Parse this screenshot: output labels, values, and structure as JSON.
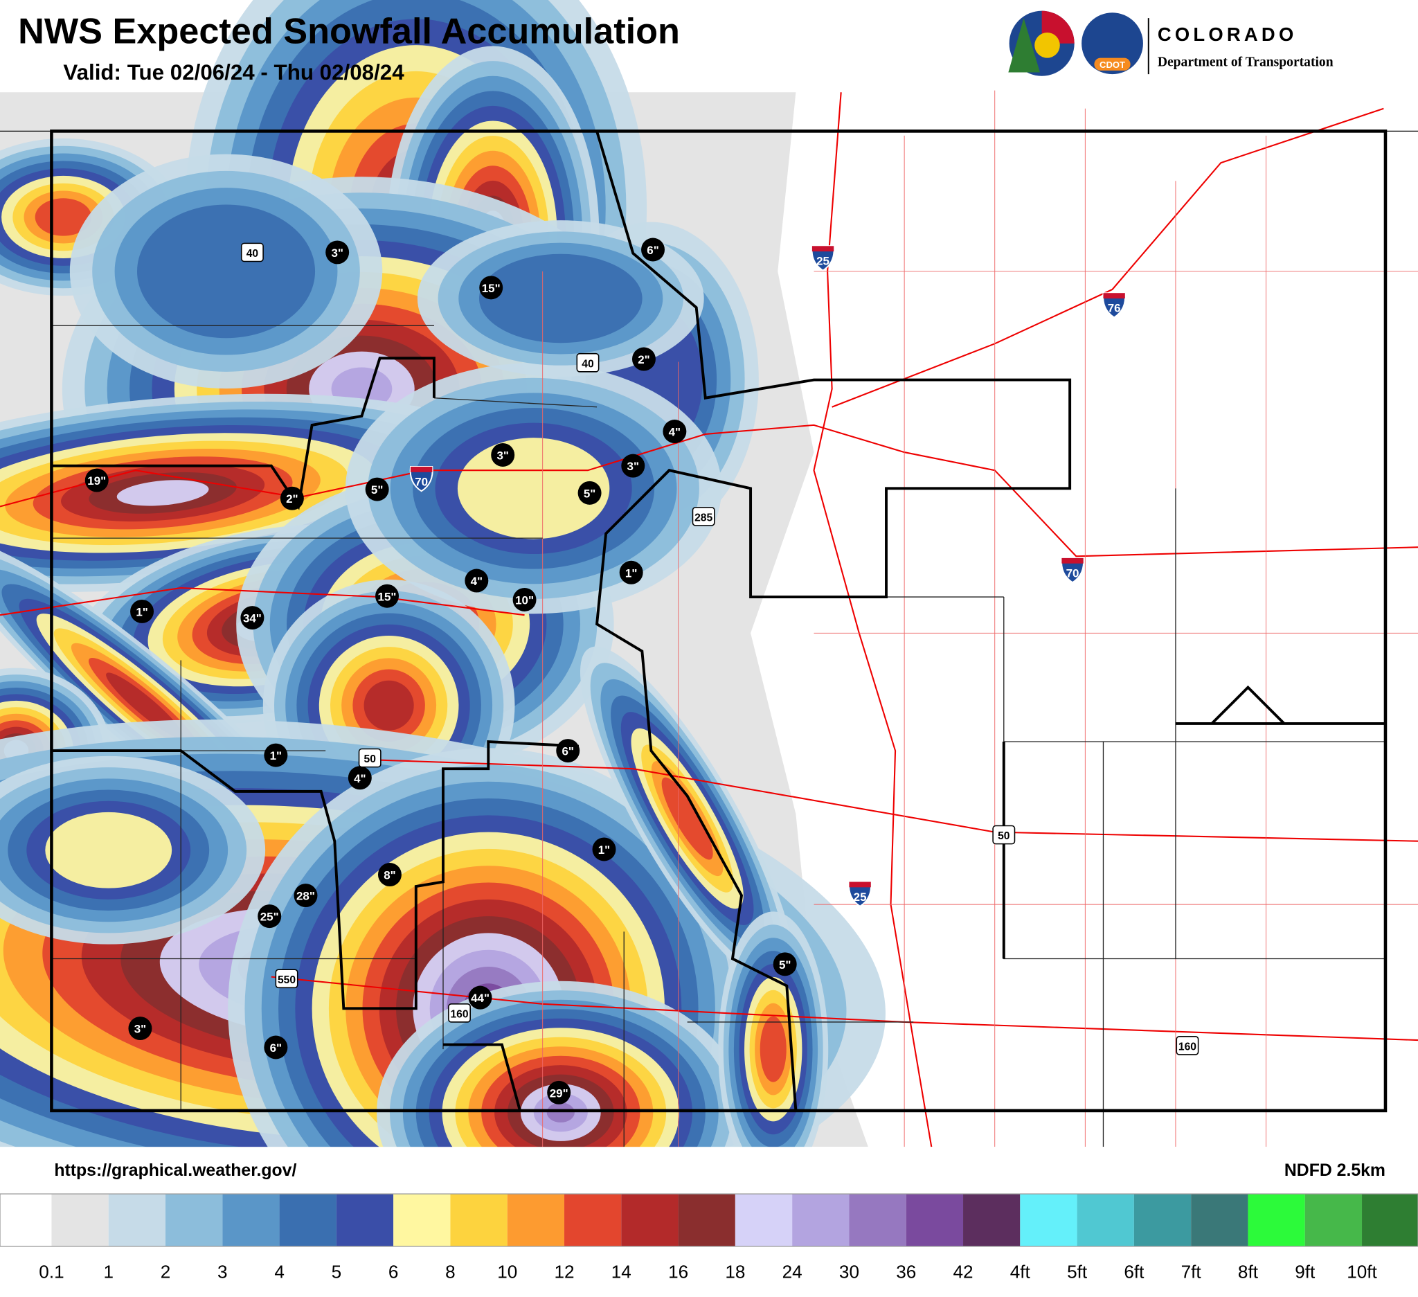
{
  "header": {
    "title": "NWS Expected Snowfall Accumulation",
    "valid": "Valid: Tue 02/06/24 - Thu 02/08/24"
  },
  "logo": {
    "name": "COLORADO",
    "department": "Department of Transportation",
    "badge": "CDOT"
  },
  "map": {
    "snow_labels": [
      "3\"",
      "15\"",
      "6\"",
      "2\"",
      "4\"",
      "3\"",
      "3\"",
      "5\"",
      "5\"",
      "2\"",
      "19\"",
      "1\"",
      "4\"",
      "10\"",
      "15\"",
      "34\"",
      "1\"",
      "1\"",
      "4\"",
      "6\"",
      "1\"",
      "8\"",
      "28\"",
      "25\"",
      "5\"",
      "44\"",
      "3\"",
      "6\"",
      "29\""
    ],
    "interstate_shields": [
      "25",
      "76",
      "70",
      "70",
      "25"
    ],
    "us_route_shields": [
      "40",
      "40",
      "285",
      "50",
      "50",
      "550",
      "160",
      "160"
    ]
  },
  "footer": {
    "source_url": "https://graphical.weather.gov/",
    "model": "NDFD 2.5km"
  },
  "legend": {
    "colors": [
      "#ffffff",
      "#e4e4e4",
      "#c6dbe8",
      "#8cbddb",
      "#5a96c8",
      "#3a6fb0",
      "#3a4ea8",
      "#fff7a0",
      "#fdd33e",
      "#fd9b30",
      "#e3462e",
      "#b32a2a",
      "#8a2e2e",
      "#d6d2f8",
      "#b3a4e0",
      "#9678c0",
      "#7a4a9e",
      "#5c2e5e",
      "#64f0fa",
      "#50c8d2",
      "#3c9aa0",
      "#3a7878",
      "#2cfa3a",
      "#46b84a",
      "#2e7e32"
    ],
    "labels": [
      "0.1",
      "1",
      "2",
      "3",
      "4",
      "5",
      "6",
      "8",
      "10",
      "12",
      "14",
      "16",
      "18",
      "24",
      "30",
      "36",
      "42",
      "4ft",
      "5ft",
      "6ft",
      "7ft",
      "8ft",
      "9ft",
      "10ft"
    ]
  }
}
